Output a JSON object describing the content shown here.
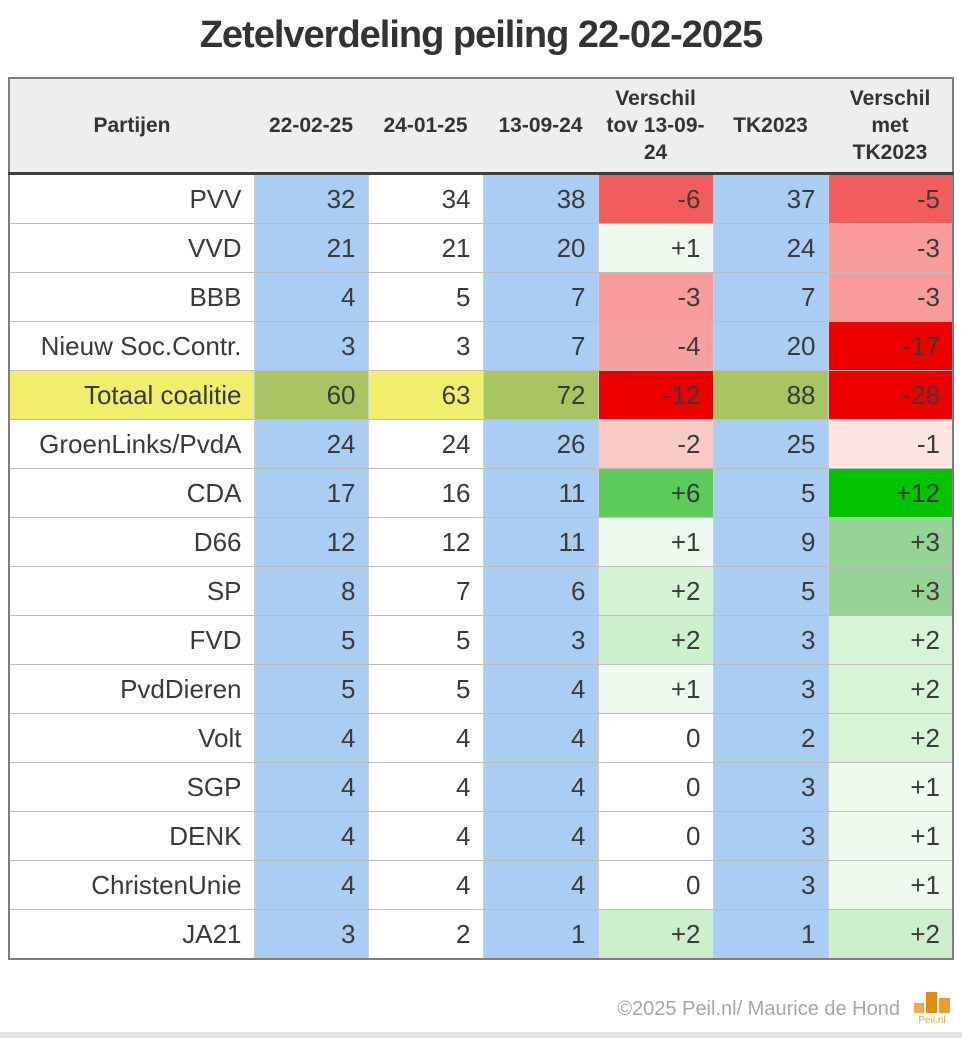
{
  "title": "Zetelverdeling peiling 22-02-2025",
  "colors": {
    "blue": "#aacdf3",
    "white": "#ffffff",
    "yellow": "#f1ee6e",
    "olive": "#a9c563",
    "header_bg": "#eeeeee",
    "bright_red": "#ee0000",
    "bright_green": "#00c400"
  },
  "table": {
    "columns": [
      "Partijen",
      "22-02-25",
      "24-01-25",
      "13-09-24",
      "Verschil tov 13-09-24",
      "TK2023",
      "Verschil met TK2023"
    ],
    "rows": [
      {
        "party": "PVV",
        "v": [
          "32",
          "34",
          "38",
          "-6",
          "37",
          "-5"
        ],
        "d1": "#f25c5c",
        "d2": "#f25c5c",
        "total": false
      },
      {
        "party": "VVD",
        "v": [
          "21",
          "21",
          "20",
          "+1",
          "24",
          "-3"
        ],
        "d1": "#effaef",
        "d2": "#f89b9b",
        "total": false
      },
      {
        "party": "BBB",
        "v": [
          "4",
          "5",
          "7",
          "-3",
          "7",
          "-3"
        ],
        "d1": "#f89b9b",
        "d2": "#f89b9b",
        "total": false
      },
      {
        "party": "Nieuw Soc.Contr.",
        "v": [
          "3",
          "3",
          "7",
          "-4",
          "20",
          "-17"
        ],
        "d1": "#f7a0a0",
        "d2": "#ee0000",
        "total": false
      },
      {
        "party": "Totaal coalitie",
        "v": [
          "60",
          "63",
          "72",
          "-12",
          "88",
          "-28"
        ],
        "d1": "#ee0000",
        "d2": "#ee0000",
        "total": true
      },
      {
        "party": "GroenLinks/PvdA",
        "v": [
          "24",
          "24",
          "26",
          "-2",
          "25",
          "-1"
        ],
        "d1": "#f8cac5",
        "d2": "#fce4e0",
        "total": false
      },
      {
        "party": "CDA",
        "v": [
          "17",
          "16",
          "11",
          "+6",
          "5",
          "+12"
        ],
        "d1": "#5bcb5b",
        "d2": "#00c400",
        "total": false
      },
      {
        "party": "D66",
        "v": [
          "12",
          "12",
          "11",
          "+1",
          "9",
          "+3"
        ],
        "d1": "#effaef",
        "d2": "#95d495",
        "total": false
      },
      {
        "party": "SP",
        "v": [
          "8",
          "7",
          "6",
          "+2",
          "5",
          "+3"
        ],
        "d1": "#d5f3d5",
        "d2": "#95d495",
        "total": false
      },
      {
        "party": "FVD",
        "v": [
          "5",
          "5",
          "3",
          "+2",
          "3",
          "+2"
        ],
        "d1": "#cdf0cd",
        "d2": "#d7f4d7",
        "total": false
      },
      {
        "party": "PvdDieren",
        "v": [
          "5",
          "5",
          "4",
          "+1",
          "3",
          "+2"
        ],
        "d1": "#effaef",
        "d2": "#d7f4d7",
        "total": false
      },
      {
        "party": "Volt",
        "v": [
          "4",
          "4",
          "4",
          "0",
          "2",
          "+2"
        ],
        "d1": "#ffffff",
        "d2": "#d7f4d7",
        "total": false
      },
      {
        "party": "SGP",
        "v": [
          "4",
          "4",
          "4",
          "0",
          "3",
          "+1"
        ],
        "d1": "#ffffff",
        "d2": "#effaef",
        "total": false
      },
      {
        "party": "DENK",
        "v": [
          "4",
          "4",
          "4",
          "0",
          "3",
          "+1"
        ],
        "d1": "#ffffff",
        "d2": "#effaef",
        "total": false
      },
      {
        "party": "ChristenUnie",
        "v": [
          "4",
          "4",
          "4",
          "0",
          "3",
          "+1"
        ],
        "d1": "#ffffff",
        "d2": "#effaef",
        "total": false
      },
      {
        "party": "JA21",
        "v": [
          "3",
          "2",
          "1",
          "+2",
          "1",
          "+2"
        ],
        "d1": "#ccf0cc",
        "d2": "#ccf0cc",
        "total": false
      }
    ]
  },
  "chart_data": {
    "type": "table",
    "title": "Zetelverdeling peiling 22-02-2025",
    "columns": [
      "Partijen",
      "22-02-25",
      "24-01-25",
      "13-09-24",
      "Verschil tov 13-09-24",
      "TK2023",
      "Verschil met TK2023"
    ],
    "rows": [
      [
        "PVV",
        32,
        34,
        38,
        -6,
        37,
        -5
      ],
      [
        "VVD",
        21,
        21,
        20,
        1,
        24,
        -3
      ],
      [
        "BBB",
        4,
        5,
        7,
        -3,
        7,
        -3
      ],
      [
        "Nieuw Soc.Contr.",
        3,
        3,
        7,
        -4,
        20,
        -17
      ],
      [
        "Totaal coalitie",
        60,
        63,
        72,
        -12,
        88,
        -28
      ],
      [
        "GroenLinks/PvdA",
        24,
        24,
        26,
        -2,
        25,
        -1
      ],
      [
        "CDA",
        17,
        16,
        11,
        6,
        5,
        12
      ],
      [
        "D66",
        12,
        12,
        11,
        1,
        9,
        3
      ],
      [
        "SP",
        8,
        7,
        6,
        2,
        5,
        3
      ],
      [
        "FVD",
        5,
        5,
        3,
        2,
        3,
        2
      ],
      [
        "PvdDieren",
        5,
        5,
        4,
        1,
        3,
        2
      ],
      [
        "Volt",
        4,
        4,
        4,
        0,
        2,
        2
      ],
      [
        "SGP",
        4,
        4,
        4,
        0,
        3,
        1
      ],
      [
        "DENK",
        4,
        4,
        4,
        0,
        3,
        1
      ],
      [
        "ChristenUnie",
        4,
        4,
        4,
        0,
        3,
        1
      ],
      [
        "JA21",
        3,
        2,
        1,
        2,
        1,
        2
      ]
    ],
    "notes": "Yellow row 'Totaal coalitie' is the highlighted coalition total; diff columns are color-coded red (loss) / green (gain)."
  },
  "footer": {
    "copyright": "©2025 Peil.nl/ Maurice de Hond",
    "logo_text": "Peil.nl"
  }
}
